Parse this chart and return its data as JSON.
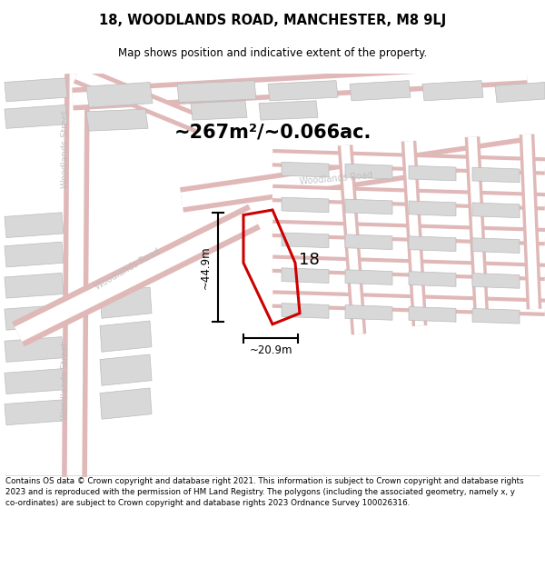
{
  "title": "18, WOODLANDS ROAD, MANCHESTER, M8 9LJ",
  "subtitle": "Map shows position and indicative extent of the property.",
  "area_text": "~267m²/~0.066ac.",
  "label_18": "18",
  "dim_height": "~44.9m",
  "dim_width": "~20.9m",
  "footer": "Contains OS data © Crown copyright and database right 2021. This information is subject to Crown copyright and database rights 2023 and is reproduced with the permission of HM Land Registry. The polygons (including the associated geometry, namely x, y co-ordinates) are subject to Crown copyright and database rights 2023 Ordnance Survey 100026316.",
  "bg_color": "#ffffff",
  "map_bg": "#ffffff",
  "road_outer": "#e0b8b8",
  "road_inner": "#f0d8d8",
  "building_fill": "#d8d8d8",
  "building_edge": "#bbbbbb",
  "property_color": "#cc0000",
  "title_color": "#000000",
  "subtitle_color": "#000000",
  "footer_color": "#000000",
  "street_label_color": "#bbbbbb",
  "figsize": [
    6.0,
    6.25
  ],
  "dpi": 100
}
